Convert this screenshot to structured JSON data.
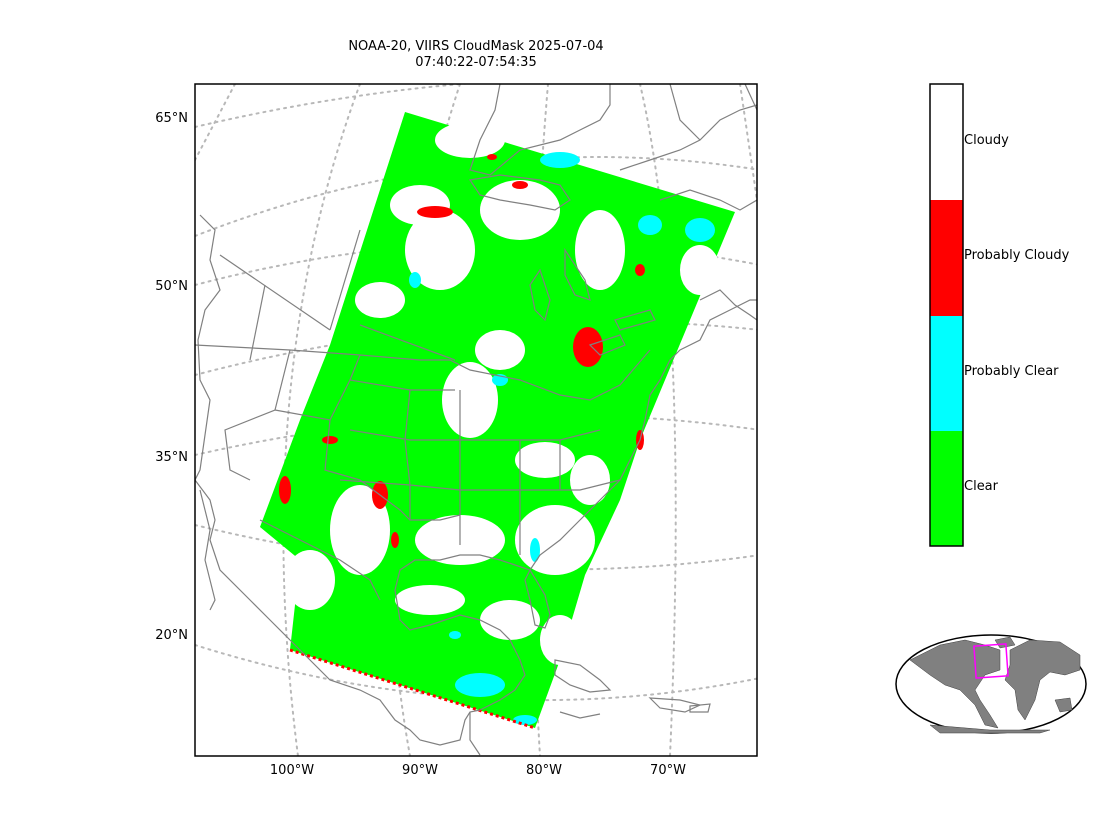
{
  "title": {
    "line1": "NOAA-20, VIIRS CloudMask 2025-07-04",
    "line2": "07:40:22-07:54:35"
  },
  "lat_labels": [
    "65°N",
    "50°N",
    "35°N",
    "20°N"
  ],
  "lon_labels": [
    "100°W",
    "90°W",
    "80°W",
    "70°W"
  ],
  "legend": {
    "categories": [
      {
        "name": "Cloudy",
        "color": "#ffffff"
      },
      {
        "name": "Probably Cloudy",
        "color": "#ff0000"
      },
      {
        "name": "Probably Clear",
        "color": "#00ffff"
      },
      {
        "name": "Clear",
        "color": "#00ff00"
      }
    ]
  },
  "colors": {
    "coastline": "#808080",
    "graticule": "#b0b0b0",
    "inset_land": "#808080",
    "inset_outline": "#000000",
    "inset_footprint": "#ff00ff"
  }
}
